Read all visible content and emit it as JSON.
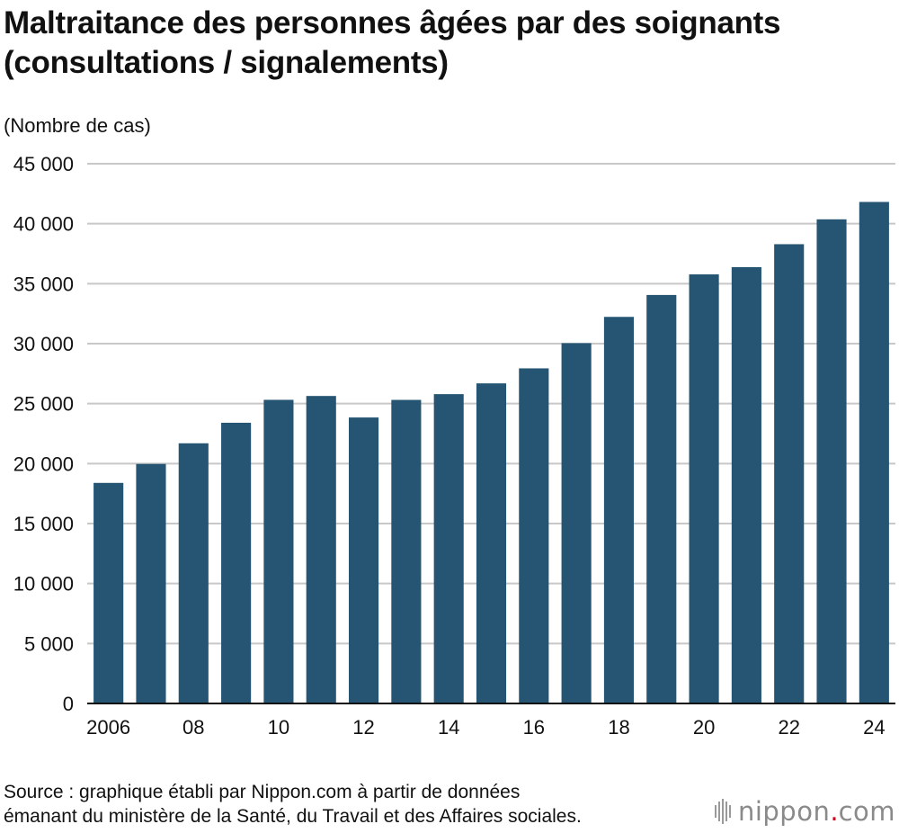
{
  "chart_data": {
    "type": "bar",
    "title": "Maltraitance des personnes âgées par des soignants (consultations / signalements)",
    "ylabel": "(Nombre de cas)",
    "xlabel": "",
    "categories": [
      "2006",
      "2007",
      "2008",
      "2009",
      "2010",
      "2011",
      "2012",
      "2013",
      "2014",
      "2015",
      "2016",
      "2017",
      "2018",
      "2019",
      "2020",
      "2021",
      "2022",
      "2023",
      "2024"
    ],
    "x_tick_labels": [
      "2006",
      "08",
      "10",
      "12",
      "14",
      "16",
      "18",
      "20",
      "22",
      "24"
    ],
    "x_tick_categories": [
      "2006",
      "2008",
      "2010",
      "2012",
      "2014",
      "2016",
      "2018",
      "2020",
      "2022",
      "2024"
    ],
    "values": [
      18390,
      19971,
      21692,
      23404,
      25315,
      25636,
      23843,
      25310,
      25791,
      26688,
      27940,
      30040,
      32231,
      34057,
      35774,
      36378,
      38291,
      40365,
      41814
    ],
    "ylim": [
      0,
      45000
    ],
    "y_ticks": [
      0,
      5000,
      10000,
      15000,
      20000,
      25000,
      30000,
      35000,
      40000,
      45000
    ],
    "y_tick_labels": [
      "0",
      "5 000",
      "10 000",
      "15 000",
      "20 000",
      "25 000",
      "30 000",
      "35 000",
      "40 000",
      "45 000"
    ],
    "grid": true,
    "legend": "none",
    "bar_color": "#255572",
    "grid_color": "#c8c8c8"
  },
  "footer": {
    "source_line1": "Source : graphique établi par Nippon.com à partir de données",
    "source_line2": "émanant du ministère de la Santé, du Travail et des Affaires sociales."
  },
  "logo": {
    "text": "nippon",
    "dot": ".",
    "suffix": "com",
    "accent_color": "#d0021b"
  }
}
